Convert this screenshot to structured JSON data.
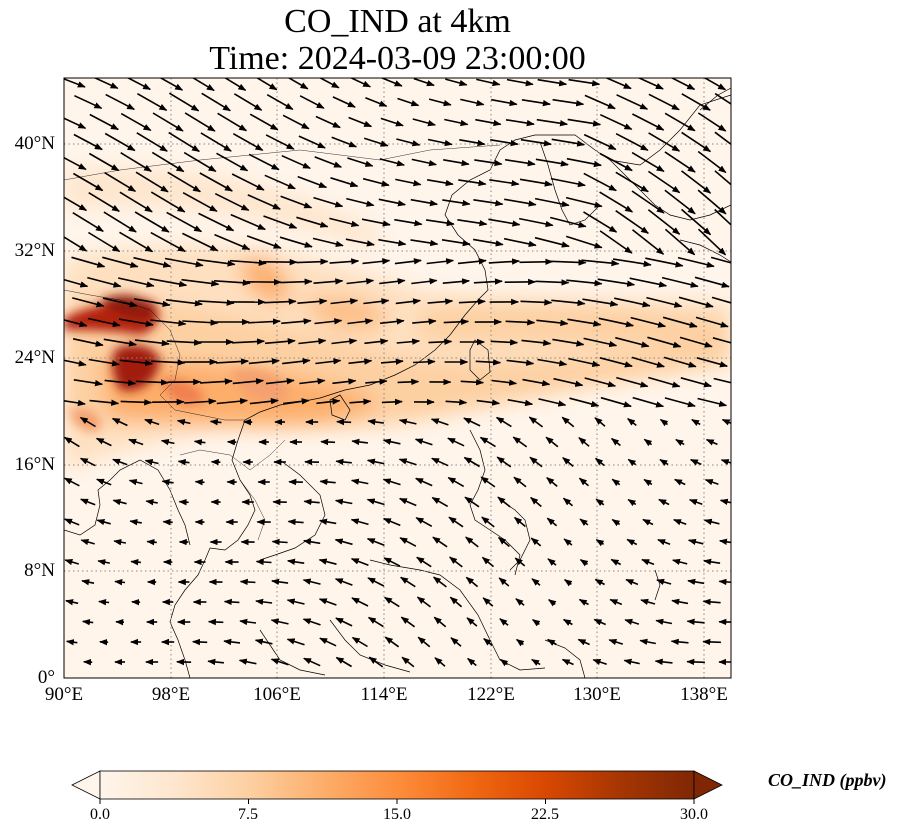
{
  "title": {
    "line1": "CO_IND at 4km",
    "line2": "Time: 2024-03-09 23:00:00"
  },
  "axes": {
    "lat_labels": [
      "40°N",
      "32°N",
      "24°N",
      "16°N",
      "8°N",
      "0°"
    ],
    "lon_labels": [
      "90°E",
      "98°E",
      "106°E",
      "114°E",
      "122°E",
      "130°E",
      "138°E"
    ]
  },
  "colorbar": {
    "label": "CO_IND (ppbv)",
    "ticks": [
      "0.0",
      "7.5",
      "15.0",
      "22.5",
      "30.0"
    ],
    "colormap": [
      "#fff5eb",
      "#fee6ce",
      "#fdd0a2",
      "#fdae6b",
      "#fd8d3c",
      "#f16913",
      "#d94801",
      "#a63603",
      "#7f2704"
    ]
  },
  "map": {
    "lon_range": [
      90,
      140
    ],
    "lat_range": [
      0,
      45
    ],
    "plume_color": "#fdae6b",
    "hotspot_color": "#a11a0a",
    "land_fill": "#fff5eb"
  }
}
